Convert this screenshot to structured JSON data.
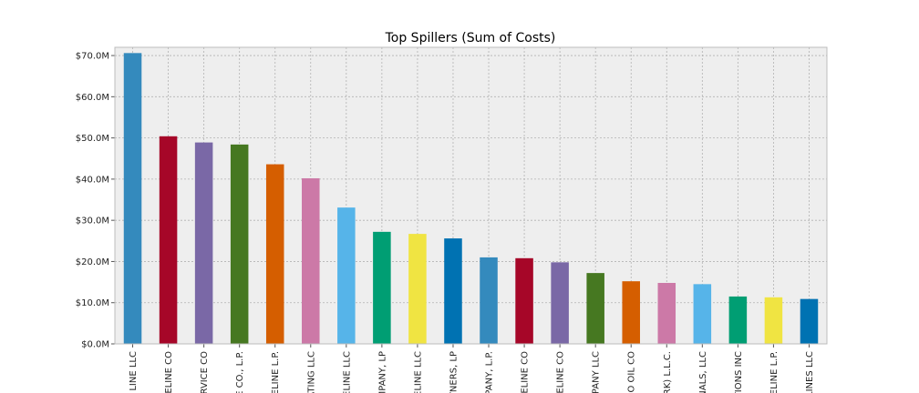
{
  "chart_data": {
    "type": "bar",
    "title": "Top Spillers (Sum of Costs)",
    "xlabel": "",
    "ylabel": "",
    "ylim": [
      0,
      72
    ],
    "y_unit": "$M",
    "y_ticks": [
      "$0.0M",
      "$10.0M",
      "$20.0M",
      "$30.0M",
      "$40.0M",
      "$50.0M",
      "$60.0M",
      "$70.0M"
    ],
    "y_tick_values": [
      0,
      10,
      20,
      30,
      40,
      50,
      60,
      70
    ],
    "grid": true,
    "categories": [
      "E LINE LLC",
      "PELINE CO",
      "ERVICE CO",
      "E CO., L.P.",
      "ELINE L.P.",
      "ATING LLC",
      "ELINE LLC",
      "MPANY, LP",
      "ELINE LLC",
      "TNERS, LP",
      "PANY, L.P.",
      "PELINE CO",
      "PELINE CO",
      "IPANY LLC",
      "CO OIL CO",
      "RK) L.L.C.",
      "NALS, LLC",
      "TIONS INC",
      "ELINE L.P.",
      "LINES LLC"
    ],
    "values": [
      70.6,
      50.4,
      48.9,
      48.4,
      43.6,
      40.2,
      33.1,
      27.2,
      26.7,
      25.6,
      21.0,
      20.8,
      19.8,
      17.2,
      15.2,
      14.8,
      14.5,
      11.5,
      11.3,
      10.9
    ],
    "colors": [
      "#348ABD",
      "#A60628",
      "#7A68A6",
      "#467821",
      "#D55E00",
      "#CC79A7",
      "#56B4E9",
      "#009E73",
      "#F0E442",
      "#0072B2"
    ]
  }
}
